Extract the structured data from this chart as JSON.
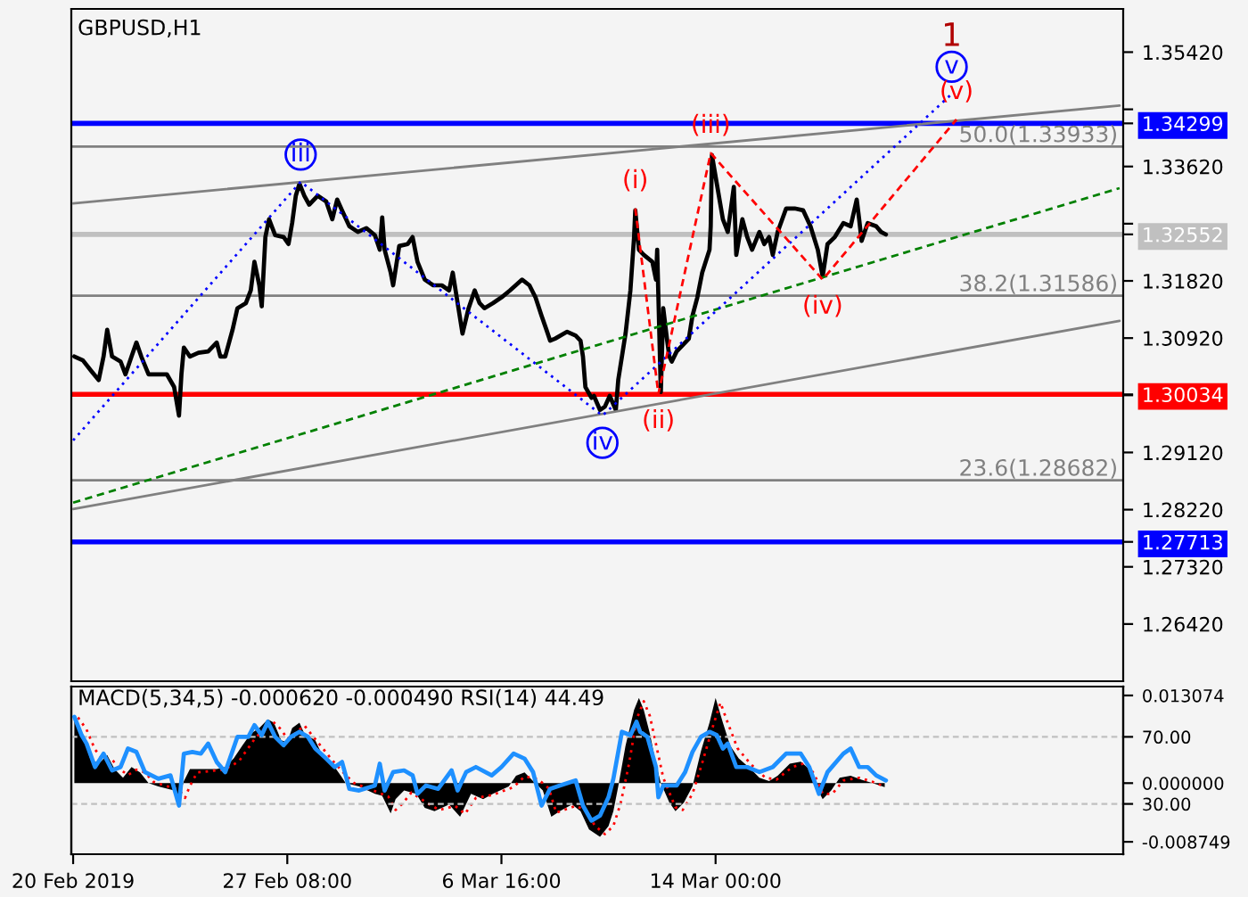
{
  "chart_data": [
    {
      "type": "line",
      "title": "GBPUSD,H1",
      "series": [
        {
          "color": "#000000",
          "x": [
            "2019-02-20T01:00",
            "2019-02-20T08:00",
            "2019-02-20T15:00",
            "2019-02-20T21:00",
            "2019-02-21T01:00",
            "2019-02-21T04:00",
            "2019-02-21T08:00",
            "2019-02-21T15:00",
            "2019-02-21T19:00",
            "2019-02-22T00:00",
            "2019-02-22T04:00",
            "2019-02-22T08:00",
            "2019-02-22T14:00",
            "2019-02-22T22:00",
            "2019-02-23T05:00",
            "2019-02-23T11:00",
            "2019-02-23T15:00",
            "2019-02-23T17:00",
            "2019-02-23T19:00",
            "2019-02-24T00:00",
            "2019-02-24T07:00",
            "2019-02-24T15:00",
            "2019-02-24T22:00",
            "2019-02-25T01:00",
            "2019-02-25T05:00",
            "2019-02-25T11:00",
            "2019-02-25T15:00",
            "2019-02-25T22:00",
            "2019-02-26T02:00",
            "2019-02-26T05:00",
            "2019-02-26T09:00",
            "2019-02-26T11:00",
            "2019-02-26T14:00",
            "2019-02-26T17:00",
            "2019-02-26T22:00",
            "2019-02-27T05:00",
            "2019-02-27T09:00",
            "2019-02-27T12:00",
            "2019-02-27T15:00",
            "2019-02-27T18:00",
            "2019-02-27T22:00",
            "2019-02-28T02:00",
            "2019-02-28T09:00",
            "2019-02-28T16:00",
            "2019-02-28T21:00",
            "2019-03-01T01:00",
            "2019-03-01T05:00",
            "2019-03-01T11:00",
            "2019-03-01T18:00",
            "2019-03-02T01:00",
            "2019-03-02T08:00",
            "2019-03-02T12:00",
            "2019-03-02T14:00",
            "2019-03-02T16:00",
            "2019-03-02T21:00",
            "2019-03-02T23:00",
            "2019-03-03T04:00",
            "2019-03-03T11:00",
            "2019-03-03T15:00",
            "2019-03-03T19:00",
            "2019-03-04T01:00",
            "2019-03-04T08:00",
            "2019-03-04T15:00",
            "2019-03-04T21:00",
            "2019-03-05T00:00",
            "2019-03-05T04:00",
            "2019-03-05T08:00",
            "2019-03-05T13:00",
            "2019-03-05T18:00",
            "2019-03-05T22:00",
            "2019-03-06T02:00",
            "2019-03-06T09:00",
            "2019-03-06T16:00",
            "2019-03-06T23:00",
            "2019-03-07T09:00",
            "2019-03-07T15:00",
            "2019-03-07T20:00",
            "2019-03-08T01:00",
            "2019-03-08T05:00",
            "2019-03-08T08:00",
            "2019-03-08T12:00",
            "2019-03-08T22:00",
            "2019-03-09T05:00",
            "2019-03-09T09:00",
            "2019-03-09T11:00",
            "2019-03-09T13:00",
            "2019-03-09T18:00",
            "2019-03-09T20:00",
            "2019-03-10T01:00",
            "2019-03-10T05:00",
            "2019-03-10T09:00",
            "2019-03-10T14:00",
            "2019-03-10T16:00",
            "2019-03-10T22:00",
            "2019-03-11T02:00",
            "2019-03-11T05:00",
            "2019-03-11T06:00",
            "2019-03-11T09:00",
            "2019-03-11T13:00",
            "2019-03-11T20:00",
            "2019-03-11T23:00",
            "2019-03-12T00:00",
            "2019-03-12T01:00",
            "2019-03-12T03:00",
            "2019-03-12T05:00",
            "2019-03-12T08:00",
            "2019-03-12T10:00",
            "2019-03-12T12:00",
            "2019-03-12T16:00",
            "2019-03-12T22:00",
            "2019-03-13T02:00",
            "2019-03-13T05:00",
            "2019-03-13T09:00",
            "2019-03-13T13:00",
            "2019-03-13T19:00",
            "2019-03-13T20:00",
            "2019-03-13T21:00",
            "2019-03-14T01:00",
            "2019-03-14T06:00",
            "2019-03-14T10:00",
            "2019-03-14T15:00",
            "2019-03-14T17:00",
            "2019-03-14T22:00",
            "2019-03-15T02:00",
            "2019-03-15T06:00",
            "2019-03-15T12:00",
            "2019-03-15T16:00",
            "2019-03-15T20:00",
            "2019-03-15T23:00",
            "2019-03-16T03:00",
            "2019-03-16T10:00",
            "2019-03-16T17:00",
            "2019-03-17T00:00",
            "2019-03-17T06:00",
            "2019-03-17T12:00",
            "2019-03-17T16:00",
            "2019-03-17T20:00",
            "2019-03-18T02:00",
            "2019-03-18T09:00",
            "2019-03-18T15:00",
            "2019-03-18T20:00",
            "2019-03-18T22:00",
            "2019-03-19T00:00",
            "2019-03-19T05:00",
            "2019-03-19T12:00",
            "2019-03-19T16:00",
            "2019-03-19T20:00"
          ],
          "values": [
            1.3063,
            1.3057,
            1.304,
            1.3026,
            1.3063,
            1.3105,
            1.3063,
            1.3055,
            1.3035,
            1.3063,
            1.3085,
            1.3063,
            1.3035,
            1.3035,
            1.3035,
            1.3015,
            1.297,
            1.3035,
            1.3077,
            1.3063,
            1.3069,
            1.3071,
            1.3085,
            1.3063,
            1.3063,
            1.3105,
            1.3139,
            1.3147,
            1.3167,
            1.3212,
            1.3175,
            1.3142,
            1.3251,
            1.3279,
            1.3254,
            1.3251,
            1.324,
            1.3273,
            1.3316,
            1.3335,
            1.3316,
            1.3302,
            1.3316,
            1.3307,
            1.3279,
            1.331,
            1.3293,
            1.3268,
            1.3259,
            1.3265,
            1.3254,
            1.3231,
            1.3282,
            1.3231,
            1.3195,
            1.3175,
            1.3237,
            1.324,
            1.3251,
            1.3212,
            1.3184,
            1.3175,
            1.3175,
            1.3167,
            1.3195,
            1.3147,
            1.3099,
            1.3139,
            1.3167,
            1.3147,
            1.3139,
            1.3147,
            1.3156,
            1.3167,
            1.3184,
            1.3175,
            1.3156,
            1.3127,
            1.3105,
            1.3088,
            1.3091,
            1.3102,
            1.3096,
            1.3088,
            1.3063,
            1.3015,
            1.2998,
            1.3001,
            1.2979,
            1.2984,
            1.3001,
            1.2979,
            1.3026,
            1.3099,
            1.3167,
            1.3251,
            1.3293,
            1.3231,
            1.3223,
            1.3212,
            1.3184,
            1.3231,
            1.3156,
            1.3007,
            1.3139,
            1.3091,
            1.3063,
            1.3055,
            1.3071,
            1.3083,
            1.3091,
            1.3127,
            1.3156,
            1.3195,
            1.3231,
            1.3268,
            1.338,
            1.3335,
            1.3279,
            1.3259,
            1.333,
            1.3223,
            1.3279,
            1.3251,
            1.3231,
            1.3259,
            1.324,
            1.3251,
            1.3223,
            1.3259,
            1.3296,
            1.3296,
            1.3293,
            1.3268,
            1.3231,
            1.3189,
            1.324,
            1.3251,
            1.3273,
            1.3268,
            1.331,
            1.3279,
            1.3245,
            1.3273,
            1.3268,
            1.3259,
            1.3255
          ]
        },
        {
          "type": "line",
          "color": "#808080",
          "x": [
            "2019-02-20T00:00",
            "2019-03-27T20:00"
          ],
          "values": [
            1.3304,
            1.3458
          ]
        },
        {
          "type": "line",
          "color": "#808080",
          "x": [
            "2019-02-20T00:00",
            "2019-03-27T20:00"
          ],
          "values": [
            1.2823,
            1.3119
          ]
        },
        {
          "type": "line",
          "color": "#008000",
          "line_style": "dashed",
          "x": [
            "2019-02-20T00:00",
            "2019-03-27T20:00"
          ],
          "values": [
            1.2833,
            1.3328
          ]
        },
        {
          "type": "line",
          "color": "#0000ff",
          "line_style": "dotted",
          "x": [
            "2019-02-20T00:00",
            "2019-02-27T19:00",
            "2019-03-10T03:00",
            "2019-03-22T02:00"
          ],
          "values": [
            1.2931,
            1.3338,
            1.297,
            1.3476
          ],
          "value_labels": [
            null,
            "iii",
            "iv",
            "v"
          ]
        },
        {
          "type": "line",
          "color": "#ff0000",
          "line_style": "dashed",
          "x": [
            "2019-03-11T06:00",
            "2019-03-12T01:00",
            "2019-03-13T20:00",
            "2019-03-17T16:00",
            "2019-03-22T06:00"
          ],
          "values": [
            1.3296,
            1.3004,
            1.3383,
            1.3184,
            1.3436
          ],
          "value_labels": [
            "(i)",
            "(ii)",
            "(iii)",
            "(iv)",
            "(v)"
          ]
        }
      ],
      "annotations": [
        {
          "text": "1",
          "x": "2019-03-22T02:00",
          "y": 1.3476
        }
      ],
      "ref_lines": [
        {
          "axis": "y",
          "value": 1.34299,
          "color": "#0000ff"
        },
        {
          "axis": "y",
          "value": 1.33933,
          "label": "50.0(1.33933)",
          "color": "#808080"
        },
        {
          "axis": "y",
          "value": 1.32552,
          "color": "#c0c0c0"
        },
        {
          "axis": "y",
          "value": 1.31586,
          "label": "38.2(1.31586)",
          "color": "#808080"
        },
        {
          "axis": "y",
          "value": 1.30034,
          "color": "#ff0000"
        },
        {
          "axis": "y",
          "value": 1.28682,
          "label": "23.6(1.28682)",
          "color": "#808080"
        },
        {
          "axis": "y",
          "value": 1.27713,
          "color": "#0000ff"
        }
      ],
      "xlim": [
        "2019-02-19T22:30",
        "2019-03-27T23:00"
      ],
      "ylim": [
        1.2552,
        1.361
      ],
      "yticks": [
        {
          "value": 1.2642,
          "label": "1.26420"
        },
        {
          "value": 1.2732,
          "label": "1.27320"
        },
        {
          "value": 1.27713,
          "label": "1.27713"
        },
        {
          "value": 1.2822,
          "label": "1.28220"
        },
        {
          "value": 1.2912,
          "label": "1.29120"
        },
        {
          "value": 1.3002,
          "label": null
        },
        {
          "value": 1.30034,
          "label": "1.30034"
        },
        {
          "value": 1.3092,
          "label": "1.30920"
        },
        {
          "value": 1.3182,
          "label": "1.31820"
        },
        {
          "value": 1.32552,
          "label": "1.32552"
        },
        {
          "value": 1.3272,
          "label": null
        },
        {
          "value": 1.3362,
          "label": "1.33620"
        },
        {
          "value": 1.34299,
          "label": "1.34299"
        },
        {
          "value": 1.3452,
          "label": null
        },
        {
          "value": 1.3542,
          "label": "1.35420"
        }
      ],
      "tick_labels": "y"
    },
    {
      "type": "area",
      "title": "MACD(5,34,5) -0.000620 -0.000490 RSI(14) 44.49",
      "series": [
        {
          "type": "area",
          "color": "#000000",
          "x": [
            "2019-02-20T01:00",
            "2019-02-20T07:00",
            "2019-02-20T14:00",
            "2019-02-20T21:00",
            "2019-02-21T04:00",
            "2019-02-21T10:00",
            "2019-02-21T17:00",
            "2019-02-22T00:00",
            "2019-02-22T07:00",
            "2019-02-22T14:00",
            "2019-02-22T22:00",
            "2019-02-23T11:00",
            "2019-02-23T15:00",
            "2019-02-23T19:00",
            "2019-02-24T00:00",
            "2019-02-24T11:00",
            "2019-02-24T22:00",
            "2019-02-25T05:00",
            "2019-02-25T12:00",
            "2019-02-25T19:00",
            "2019-02-26T02:00",
            "2019-02-26T09:00",
            "2019-02-26T16:00",
            "2019-02-26T21:00",
            "2019-02-27T03:00",
            "2019-02-27T08:00",
            "2019-02-27T12:00",
            "2019-02-27T18:00",
            "2019-02-27T22:00",
            "2019-02-28T07:00",
            "2019-02-28T14:00",
            "2019-02-28T21:00",
            "2019-03-01T04:00",
            "2019-03-01T08:00",
            "2019-03-01T19:00",
            "2019-03-02T08:00",
            "2019-03-02T14:00",
            "2019-03-02T21:00",
            "2019-03-03T01:00",
            "2019-03-03T08:00",
            "2019-03-03T18:00",
            "2019-03-04T01:00",
            "2019-03-04T09:00",
            "2019-03-04T21:00",
            "2019-03-05T06:00",
            "2019-03-05T15:00",
            "2019-03-06T01:00",
            "2019-03-06T09:00",
            "2019-03-06T22:00",
            "2019-03-07T04:00",
            "2019-03-07T11:00",
            "2019-03-07T18:00",
            "2019-03-08T02:00",
            "2019-03-08T09:00",
            "2019-03-08T16:00",
            "2019-03-09T02:00",
            "2019-03-09T09:00",
            "2019-03-09T16:00",
            "2019-03-10T01:00",
            "2019-03-10T08:00",
            "2019-03-10T12:00",
            "2019-03-10T16:00",
            "2019-03-10T22:00",
            "2019-03-11T05:00",
            "2019-03-11T09:00",
            "2019-03-11T13:00",
            "2019-03-11T18:00",
            "2019-03-11T23:00",
            "2019-03-12T03:00",
            "2019-03-12T10:00",
            "2019-03-12T15:00",
            "2019-03-12T22:00",
            "2019-03-13T05:00",
            "2019-03-13T12:00",
            "2019-03-13T19:00",
            "2019-03-14T00:00",
            "2019-03-14T06:00",
            "2019-03-14T12:00",
            "2019-03-14T19:00",
            "2019-03-15T05:00",
            "2019-03-15T12:00",
            "2019-03-15T20:00",
            "2019-03-16T03:00",
            "2019-03-16T13:00",
            "2019-03-16T22:00",
            "2019-03-17T05:00",
            "2019-03-17T09:00",
            "2019-03-17T16:00",
            "2019-03-17T23:00",
            "2019-03-18T06:00",
            "2019-03-18T15:00",
            "2019-03-19T00:00",
            "2019-03-19T09:00",
            "2019-03-19T19:00"
          ],
          "values": [
            0.0101,
            0.0074,
            0.0037,
            0.0029,
            0.0042,
            0.0021,
            0.0008,
            0.0024,
            0.0016,
            0,
            -0.0005,
            -0.0011,
            -0.0024,
            0.0003,
            0.0021,
            0.0021,
            0.0021,
            0.0024,
            0.0037,
            0.0056,
            0.0074,
            0.0082,
            0.0095,
            0.009,
            0.0064,
            0.0061,
            0.0082,
            0.009,
            0.0074,
            0.0064,
            0.0037,
            0.0029,
            0.0011,
            0,
            -0.0005,
            -0.0016,
            -0.0019,
            -0.0045,
            -0.0024,
            -0.0011,
            -0.0016,
            -0.0037,
            -0.0042,
            -0.0032,
            -0.005,
            -0.0016,
            -0.0024,
            -0.0016,
            -0.0005,
            0.0011,
            0.0016,
            0.0003,
            -0.0011,
            -0.005,
            -0.0042,
            -0.0032,
            -0.0042,
            -0.0069,
            -0.008,
            -0.0064,
            -0.0042,
            -0.0005,
            0.0056,
            0.0109,
            0.0127,
            0.0109,
            0.0074,
            0.0029,
            0,
            -0.0029,
            -0.0042,
            -0.0029,
            -0.0005,
            0.0048,
            0.009,
            0.0127,
            0.009,
            0.0056,
            0.0037,
            0.0021,
            0.0008,
            0.0003,
            0.0011,
            0.0029,
            0.0032,
            0.0021,
            0,
            -0.0024,
            -0.0011,
            0.0008,
            0.0011,
            0.0005,
            0,
            -0.0006
          ]
        },
        {
          "type": "line",
          "color": "#ff0000",
          "line_style": "dotted",
          "x": [
            "2019-02-20T04:00",
            "2019-02-20T11:00",
            "2019-02-20T18:00",
            "2019-02-21T01:00",
            "2019-02-21T08:00",
            "2019-02-21T15:00",
            "2019-02-21T21:00",
            "2019-02-22T04:00",
            "2019-02-22T11:00",
            "2019-02-22T18:00",
            "2019-02-23T04:00",
            "2019-02-23T15:00",
            "2019-02-23T20:00",
            "2019-02-24T00:00",
            "2019-02-24T06:00",
            "2019-02-25T04:00",
            "2019-02-25T16:00",
            "2019-02-25T23:00",
            "2019-02-26T06:00",
            "2019-02-26T13:00",
            "2019-02-26T20:00",
            "2019-02-27T03:00",
            "2019-02-27T08:00",
            "2019-02-27T15:00",
            "2019-02-27T22:00",
            "2019-02-28T05:00",
            "2019-02-28T14:00",
            "2019-02-28T21:00",
            "2019-03-01T08:00",
            "2019-03-01T15:00",
            "2019-03-02T08:00",
            "2019-03-02T19:00",
            "2019-03-03T01:00",
            "2019-03-03T07:00",
            "2019-03-03T14:00",
            "2019-03-04T05:00",
            "2019-03-04T13:00",
            "2019-03-05T02:00",
            "2019-03-05T10:00",
            "2019-03-05T19:00",
            "2019-03-06T08:00",
            "2019-03-07T02:00",
            "2019-03-07T11:00",
            "2019-03-07T22:00",
            "2019-03-08T07:00",
            "2019-03-08T13:00",
            "2019-03-09T05:00",
            "2019-03-09T13:00",
            "2019-03-09T21:00",
            "2019-03-10T05:00",
            "2019-03-10T12:00",
            "2019-03-10T18:00",
            "2019-03-11T01:00",
            "2019-03-11T07:00",
            "2019-03-11T13:00",
            "2019-03-11T18:00",
            "2019-03-12T00:00",
            "2019-03-12T05:00",
            "2019-03-12T15:00",
            "2019-03-12T21:00",
            "2019-03-13T05:00",
            "2019-03-13T13:00",
            "2019-03-13T21:00",
            "2019-03-14T04:00",
            "2019-03-14T10:00",
            "2019-03-14T18:00",
            "2019-03-15T05:00",
            "2019-03-15T17:00",
            "2019-03-16T02:00",
            "2019-03-16T15:00",
            "2019-03-17T02:00",
            "2019-03-17T09:00",
            "2019-03-17T16:00",
            "2019-03-18T00:00",
            "2019-03-18T09:00",
            "2019-03-18T22:00",
            "2019-03-19T09:00",
            "2019-03-19T19:00"
          ],
          "values": [
            0.0098,
            0.008,
            0.005,
            0.0035,
            0.0035,
            0.002,
            0.0012,
            0.002,
            0.0016,
            0.0002,
            -0.0004,
            -0.001,
            -0.0022,
            -0.0004,
            0.0016,
            0.002,
            0.0032,
            0.005,
            0.0068,
            0.008,
            0.0092,
            0.008,
            0.0066,
            0.0075,
            0.0086,
            0.007,
            0.005,
            0.0034,
            0.0012,
            0,
            -0.0012,
            -0.002,
            -0.004,
            -0.003,
            -0.0014,
            -0.0032,
            -0.004,
            -0.0034,
            -0.0046,
            -0.0022,
            -0.0018,
            -0.0006,
            0.001,
            0.0006,
            -0.0008,
            -0.0044,
            -0.0034,
            -0.004,
            -0.0064,
            -0.0076,
            -0.0064,
            -0.003,
            0.003,
            0.0095,
            0.0122,
            0.01,
            0.005,
            0.0008,
            -0.0036,
            -0.004,
            -0.0016,
            0.003,
            0.008,
            0.012,
            0.009,
            0.0052,
            0.0028,
            0.0008,
            0.0005,
            0.0024,
            0.003,
            0.0014,
            -0.0016,
            -0.0016,
            0.0004,
            0.0008,
            0.0002,
            -0.0005
          ]
        },
        {
          "type": "line",
          "color": "#1e90ff",
          "axis": "y2",
          "x": [
            "2019-02-20T01:00",
            "2019-02-20T07:00",
            "2019-02-20T11:00",
            "2019-02-20T18:00",
            "2019-02-21T01:00",
            "2019-02-21T08:00",
            "2019-02-21T15:00",
            "2019-02-21T21:00",
            "2019-02-22T04:00",
            "2019-02-22T11:00",
            "2019-02-22T22:00",
            "2019-02-23T08:00",
            "2019-02-23T15:00",
            "2019-02-23T19:00",
            "2019-02-24T02:00",
            "2019-02-24T09:00",
            "2019-02-24T15:00",
            "2019-02-24T22:00",
            "2019-02-25T05:00",
            "2019-02-25T15:00",
            "2019-02-26T00:00",
            "2019-02-26T05:00",
            "2019-02-26T11:00",
            "2019-02-26T16:00",
            "2019-02-26T22:00",
            "2019-02-27T05:00",
            "2019-02-27T11:00",
            "2019-02-27T18:00",
            "2019-02-28T01:00",
            "2019-02-28T07:00",
            "2019-02-28T16:00",
            "2019-02-28T23:00",
            "2019-03-01T05:00",
            "2019-03-01T11:00",
            "2019-03-01T19:00",
            "2019-03-02T08:00",
            "2019-03-02T12:00",
            "2019-03-02T16:00",
            "2019-03-02T23:00",
            "2019-03-03T08:00",
            "2019-03-03T15:00",
            "2019-03-03T19:00",
            "2019-03-04T02:00",
            "2019-03-04T12:00",
            "2019-03-04T23:00",
            "2019-03-05T04:00",
            "2019-03-05T11:00",
            "2019-03-05T19:00",
            "2019-03-06T08:00",
            "2019-03-06T16:00",
            "2019-03-07T02:00",
            "2019-03-07T11:00",
            "2019-03-07T18:00",
            "2019-03-08T01:00",
            "2019-03-08T08:00",
            "2019-03-08T16:00",
            "2019-03-09T05:00",
            "2019-03-09T11:00",
            "2019-03-09T18:00",
            "2019-03-10T01:00",
            "2019-03-10T08:00",
            "2019-03-10T12:00",
            "2019-03-10T19:00",
            "2019-03-11T02:00",
            "2019-03-11T07:00",
            "2019-03-11T10:00",
            "2019-03-11T16:00",
            "2019-03-11T23:00",
            "2019-03-12T01:00",
            "2019-03-12T05:00",
            "2019-03-12T16:00",
            "2019-03-12T23:00",
            "2019-03-13T05:00",
            "2019-03-13T12:00",
            "2019-03-13T19:00",
            "2019-03-14T01:00",
            "2019-03-14T06:00",
            "2019-03-14T10:00",
            "2019-03-14T17:00",
            "2019-03-15T02:00",
            "2019-03-15T12:00",
            "2019-03-15T23:00",
            "2019-03-16T10:00",
            "2019-03-16T22:00",
            "2019-03-17T05:00",
            "2019-03-17T13:00",
            "2019-03-17T20:00",
            "2019-03-18T09:00",
            "2019-03-18T15:00",
            "2019-03-18T22:00",
            "2019-03-19T05:00",
            "2019-03-19T12:00",
            "2019-03-19T20:00"
          ],
          "values": [
            82,
            71,
            66,
            52,
            60,
            50,
            52,
            63,
            61,
            49,
            45,
            47,
            29,
            60,
            61,
            60,
            66,
            55,
            49,
            70,
            70,
            77,
            71,
            79,
            70,
            65,
            70,
            73,
            70,
            63,
            57,
            52,
            55,
            39,
            38,
            41,
            54,
            38,
            49,
            50,
            47,
            36,
            41,
            39,
            50,
            38,
            49,
            52,
            47,
            52,
            60,
            57,
            49,
            29,
            39,
            41,
            44,
            29,
            20,
            23,
            34,
            45,
            73,
            71,
            79,
            73,
            70,
            52,
            34,
            41,
            41,
            49,
            61,
            70,
            73,
            71,
            63,
            66,
            52,
            52,
            49,
            52,
            60,
            60,
            52,
            36,
            49,
            60,
            63,
            52,
            52,
            47,
            44
          ]
        }
      ],
      "ref_lines": [
        {
          "axis": "y2",
          "value": 70,
          "color": "#c0c0c0",
          "line_style": "dashed"
        },
        {
          "axis": "y2",
          "value": 30,
          "color": "#c0c0c0",
          "line_style": "dashed"
        }
      ],
      "xlim": [
        "2019-02-19T22:30",
        "2019-03-27T23:00"
      ],
      "xticks": [
        {
          "value": "2019-02-20T00:00",
          "label": "20 Feb 2019"
        },
        {
          "value": "2019-02-27T08:00",
          "label": "27 Feb 08:00"
        },
        {
          "value": "2019-03-06T16:00",
          "label": "6 Mar 16:00"
        },
        {
          "value": "2019-03-14T00:00",
          "label": "14 Mar 00:00"
        }
      ],
      "ylim": [
        -0.0106,
        0.0144
      ],
      "yticks": [
        {
          "value": -0.008749,
          "label": "-0.008749"
        },
        {
          "value": 0,
          "label": "0.000000"
        },
        {
          "value": 0.013074,
          "label": "0.013074"
        }
      ],
      "y2lim": [
        0,
        100
      ],
      "y2ticks": [
        {
          "value": 30,
          "label": "30.00"
        },
        {
          "value": 70,
          "label": "70.00"
        }
      ]
    }
  ]
}
